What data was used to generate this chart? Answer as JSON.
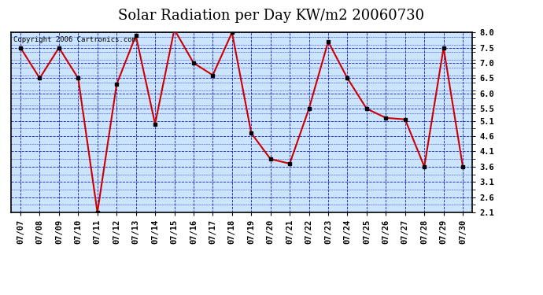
{
  "title": "Solar Radiation per Day KW/m2 20060730",
  "copyright_text": "Copyright 2006 Cartronics.com",
  "dates": [
    "07/07",
    "07/08",
    "07/09",
    "07/10",
    "07/11",
    "07/12",
    "07/13",
    "07/14",
    "07/15",
    "07/16",
    "07/17",
    "07/18",
    "07/19",
    "07/20",
    "07/21",
    "07/22",
    "07/23",
    "07/24",
    "07/25",
    "07/26",
    "07/27",
    "07/28",
    "07/29",
    "07/30"
  ],
  "values": [
    7.5,
    6.5,
    7.5,
    6.5,
    2.1,
    6.3,
    7.9,
    5.0,
    8.1,
    7.0,
    6.6,
    8.0,
    4.7,
    3.85,
    3.7,
    5.5,
    7.7,
    6.5,
    5.5,
    5.2,
    5.15,
    3.6,
    7.5,
    3.6
  ],
  "ylim": [
    2.1,
    8.0
  ],
  "yticks": [
    2.1,
    2.6,
    3.1,
    3.6,
    4.1,
    4.6,
    5.1,
    5.5,
    6.0,
    6.5,
    7.0,
    7.5,
    8.0
  ],
  "line_color": "#cc0000",
  "marker_color": "#000000",
  "bg_color": "#cce5ff",
  "grid_color": "#0000bb",
  "title_fontsize": 13,
  "tick_fontsize": 7.5,
  "copyright_fontsize": 6.5
}
